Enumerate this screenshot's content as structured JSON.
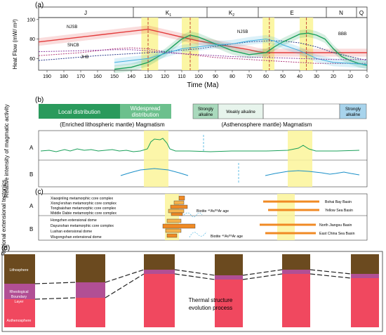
{
  "panel_a": {
    "label": "(a)",
    "periods": [
      "J",
      "K",
      "K",
      "E",
      "N",
      "Q"
    ],
    "period_subscripts": [
      "1",
      "2"
    ],
    "y_axis_label": "Heat Flow (mW/ m²)",
    "y_ticks": [
      "100",
      "80",
      "60"
    ],
    "x_axis_label": "Time (Ma)",
    "x_ticks": [
      "190",
      "180",
      "170",
      "160",
      "150",
      "140",
      "130",
      "120",
      "110",
      "100",
      "90",
      "80",
      "70",
      "60",
      "50",
      "40",
      "30",
      "20",
      "10",
      "0"
    ],
    "curve_labels": [
      "NJSB",
      "SNCB",
      "JHB",
      "NJSB",
      "BBB"
    ]
  },
  "chart_data": {
    "type": "line",
    "xlabel": "Time (Ma)",
    "ylabel": "Heat Flow (mW/ m²)",
    "xlim": [
      195,
      0
    ],
    "ylim": [
      48,
      102
    ],
    "highlight_bands_ma": [
      [
        134,
        124
      ],
      [
        110,
        100
      ],
      [
        62,
        55
      ],
      [
        40,
        32
      ]
    ],
    "event_lines_ma": [
      130,
      105,
      58,
      36
    ],
    "series": [
      {
        "name": "NJSB",
        "color": "#e33c3c",
        "band": true,
        "x": [
          195,
          180,
          160,
          145,
          135,
          130,
          120,
          110,
          100,
          90,
          80,
          70,
          65,
          60,
          50,
          40,
          30,
          20,
          10,
          0
        ],
        "y": [
          77,
          80,
          84,
          87,
          89,
          90,
          86,
          82,
          78,
          75,
          72,
          69,
          67,
          66,
          66,
          66,
          66,
          66,
          66,
          66
        ]
      },
      {
        "name": "SNCB",
        "color": "#b03a7a",
        "band": false,
        "x": [
          195,
          170,
          150,
          140,
          130,
          120,
          110,
          100,
          90,
          80,
          70,
          60,
          50,
          40,
          30,
          20,
          10,
          0
        ],
        "y": [
          63,
          66,
          70,
          71,
          70,
          67,
          65,
          63,
          61,
          60,
          59,
          58,
          57,
          56,
          55,
          55,
          55,
          55
        ]
      },
      {
        "name": "JHB",
        "color": "#2a3a8a",
        "band": false,
        "x": [
          195,
          180,
          160,
          140,
          120,
          100,
          80,
          70,
          60,
          50,
          40,
          30,
          20,
          10,
          0
        ],
        "y": [
          58,
          60,
          63,
          65,
          67,
          70,
          75,
          77,
          78,
          78,
          76,
          72,
          66,
          62,
          58
        ]
      },
      {
        "name": "",
        "color": "#1aa05a",
        "band": true,
        "x": [
          150,
          140,
          130,
          120,
          110,
          105,
          100,
          90,
          80,
          70,
          60,
          55,
          50,
          45,
          40,
          35,
          30,
          25,
          20,
          15,
          10,
          5,
          0
        ],
        "y": [
          49,
          51,
          56,
          66,
          80,
          84,
          82,
          75,
          68,
          64,
          66,
          72,
          77,
          81,
          85,
          86,
          84,
          80,
          70,
          62,
          58,
          55,
          53
        ]
      },
      {
        "name": "",
        "color": "#3fb0e0",
        "band": true,
        "x": [
          150,
          140,
          130,
          120,
          110,
          100,
          90,
          80,
          70,
          60,
          55,
          50,
          40,
          30,
          20,
          10,
          0
        ],
        "y": [
          56,
          58,
          60,
          65,
          70,
          72,
          74,
          75,
          78,
          80,
          78,
          74,
          68,
          60,
          56,
          55,
          54
        ]
      },
      {
        "name": "",
        "color": "#8a3aa0",
        "band": false,
        "x": [
          195,
          170,
          150,
          140,
          130,
          120,
          100,
          80,
          60,
          40,
          20,
          0
        ],
        "y": [
          67,
          68,
          69,
          69,
          68,
          66,
          64,
          62,
          61,
          60,
          59,
          59
        ]
      }
    ]
  },
  "panel_b": {
    "label": "(b)",
    "y_axis_label": "Relative intensity of magmatic activity",
    "boxes": {
      "local": "Local distribution",
      "widespread_1": "Widespread",
      "widespread_2": "distribution",
      "strong_1a": "Strongly",
      "strong_1b": "alkaline",
      "weak": "Weakly alkaline",
      "strong_2a": "Strongly",
      "strong_2b": "alkaline"
    },
    "caption_left": "(Enriched lithospheric mantle) Magmatism",
    "caption_right": "(Asthenosphere mantle) Magmatism",
    "row_labels": [
      "A",
      "B"
    ]
  },
  "panel_c": {
    "label": "(c)",
    "y_axis_label": "Regional extensional tectonics",
    "row_labels": [
      "A",
      "B"
    ],
    "complexes_a": [
      "Xiaoqinling metamorphic core complex",
      "Xiong'ershan metamorphic core complex",
      "Tongbaishan metamorphic core complex",
      "Middle Dabie metamorphic core complex"
    ],
    "complexes_b": [
      "Hongzhen extensional dome",
      "Dayunshan metamorphic core complex",
      "Lushan extensional dome",
      "Wugongshan extensional dome"
    ],
    "biotite_label": "Biotite ⁴⁰Ar/³⁹Ar age",
    "basins_a": [
      "Bohai Bay Basin",
      "Yellow Sea Basin"
    ],
    "basins_b": [
      "North Jiangsu Basin",
      "East China Sea Basin"
    ]
  },
  "panel_d": {
    "label": "(d)",
    "layers": [
      "Lithosphere",
      "Rheological",
      "Boundary",
      "Layer",
      "Asthenosphere"
    ],
    "caption_1": "Thermal structure",
    "caption_2": "evolution process",
    "colors": {
      "lithosphere": "#6b4a1f",
      "boundary": "#b14f94",
      "asthenosphere": "#f0485f"
    }
  }
}
